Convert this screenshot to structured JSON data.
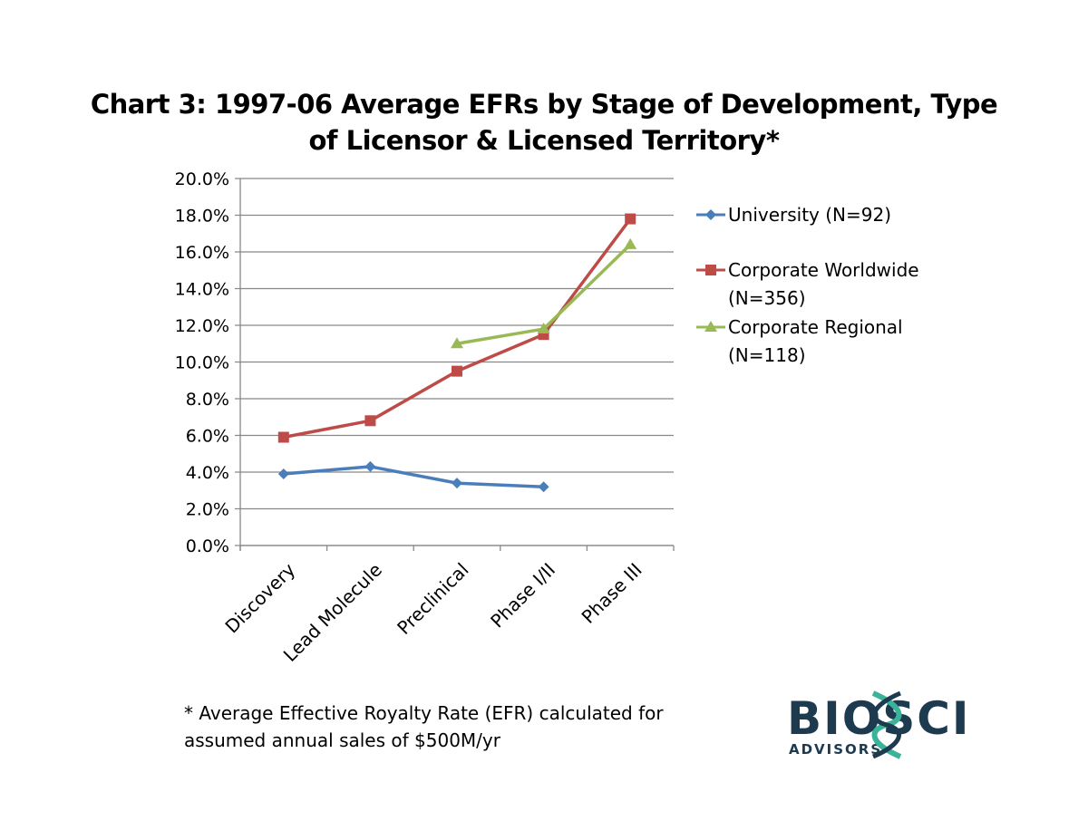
{
  "chart_data": {
    "type": "line",
    "title": "Chart 3:  1997-06 Average EFRs by Stage of Development, Type of Licensor & Licensed Territory*",
    "xlabel": "",
    "ylabel": "",
    "categories": [
      "Discovery",
      "Lead Molecule",
      "Preclinical",
      "Phase I/II",
      "Phase III"
    ],
    "ylim": [
      0,
      20
    ],
    "y_ticks": [
      "0.0%",
      "2.0%",
      "4.0%",
      "6.0%",
      "8.0%",
      "10.0%",
      "12.0%",
      "14.0%",
      "16.0%",
      "18.0%",
      "20.0%"
    ],
    "grid": true,
    "legend_position": "right",
    "series": [
      {
        "name": "University (N=92)",
        "legend_lines": [
          "University (N=92)"
        ],
        "color": "#4a7ebb",
        "marker": "diamond",
        "values": [
          3.9,
          4.3,
          3.4,
          3.2,
          null
        ]
      },
      {
        "name": "Corporate Worldwide (N=356)",
        "legend_lines": [
          "Corporate Worldwide",
          "(N=356)"
        ],
        "color": "#be4b48",
        "marker": "square",
        "values": [
          5.9,
          6.8,
          9.5,
          11.5,
          17.8
        ]
      },
      {
        "name": "Corporate Regional (N=118)",
        "legend_lines": [
          "Corporate Regional",
          "(N=118)"
        ],
        "color": "#98b954",
        "marker": "triangle",
        "values": [
          null,
          null,
          11.0,
          11.8,
          16.4
        ]
      }
    ]
  },
  "footnote": {
    "line1": "* Average Effective Royalty Rate (EFR) calculated for",
    "line2": "assumed annual sales of $500M/yr"
  },
  "logo": {
    "name": "BIOSCI",
    "subtitle": "ADVISORS",
    "dark_color": "#1d3a4f",
    "accent_color": "#3bb39a"
  }
}
